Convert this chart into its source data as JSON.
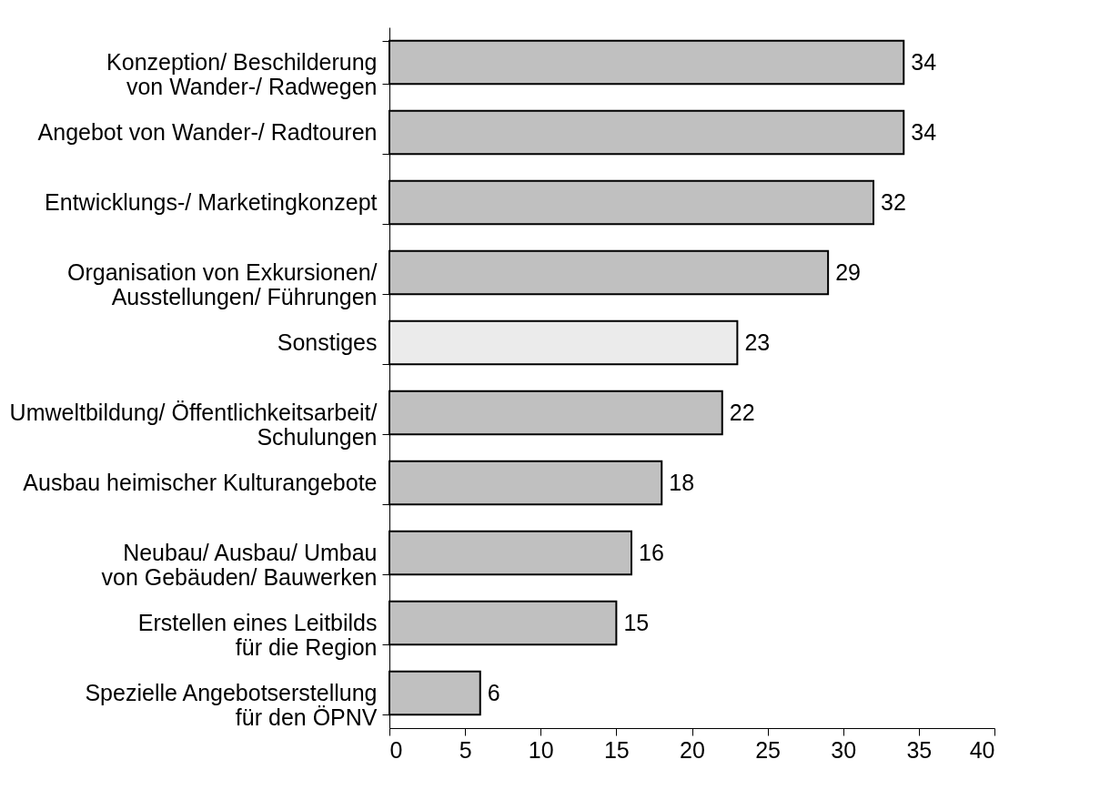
{
  "chart_data": {
    "type": "bar",
    "orientation": "horizontal",
    "categories": [
      "Konzeption/ Beschilderung\nvon Wander-/ Radwegen",
      "Angebot von Wander-/ Radtouren",
      "Entwicklungs-/ Marketingkonzept",
      "Organisation von Exkursionen/\nAusstellungen/ Führungen",
      "Sonstiges",
      "Umweltbildung/ Öffentlichkeitsarbeit/\nSchulungen",
      "Ausbau heimischer Kulturangebote",
      "Neubau/ Ausbau/ Umbau\nvon Gebäuden/ Bauwerken",
      "Erstellen eines Leitbilds\nfür die Region",
      "Spezielle Angebotserstellung\nfür den ÖPNV"
    ],
    "values": [
      34,
      34,
      32,
      29,
      23,
      22,
      18,
      16,
      15,
      6
    ],
    "colors": [
      "#c0c0c0",
      "#c0c0c0",
      "#c0c0c0",
      "#c0c0c0",
      "#ebebeb",
      "#c0c0c0",
      "#c0c0c0",
      "#c0c0c0",
      "#c0c0c0",
      "#c0c0c0"
    ],
    "xlim": [
      0,
      40
    ],
    "xticks": [
      0,
      5,
      10,
      15,
      20,
      25,
      30,
      35,
      40
    ],
    "data_labels": true,
    "grid": false
  }
}
